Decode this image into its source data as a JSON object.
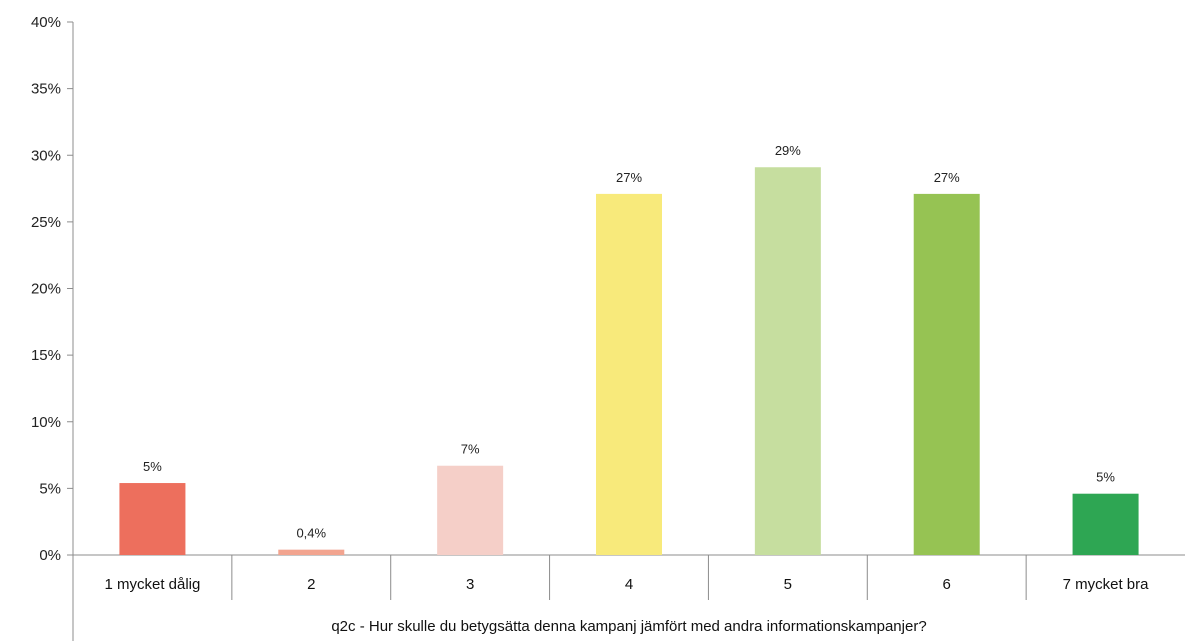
{
  "chart_data": {
    "type": "bar",
    "xlabel": "q2c - Hur skulle du betygsätta denna kampanj jämfört med andra informationskampanjer?",
    "ylabel": "",
    "ylim": [
      0,
      40
    ],
    "yticks": [
      "0%",
      "5%",
      "10%",
      "15%",
      "20%",
      "25%",
      "30%",
      "35%",
      "40%"
    ],
    "categories": [
      "1 mycket dålig",
      "2",
      "3",
      "4",
      "5",
      "6",
      "7 mycket bra"
    ],
    "values": [
      5.4,
      0.4,
      6.7,
      27.1,
      29.1,
      27.1,
      4.6
    ],
    "data_labels": [
      "5%",
      "0,4%",
      "7%",
      "27%",
      "29%",
      "27%",
      "5%"
    ],
    "colors": [
      "#ED6F5D",
      "#F2A48F",
      "#F5CFC8",
      "#F8EA7B",
      "#C6DE9F",
      "#96C353",
      "#2EA653"
    ],
    "grid": false,
    "legend": "none"
  }
}
